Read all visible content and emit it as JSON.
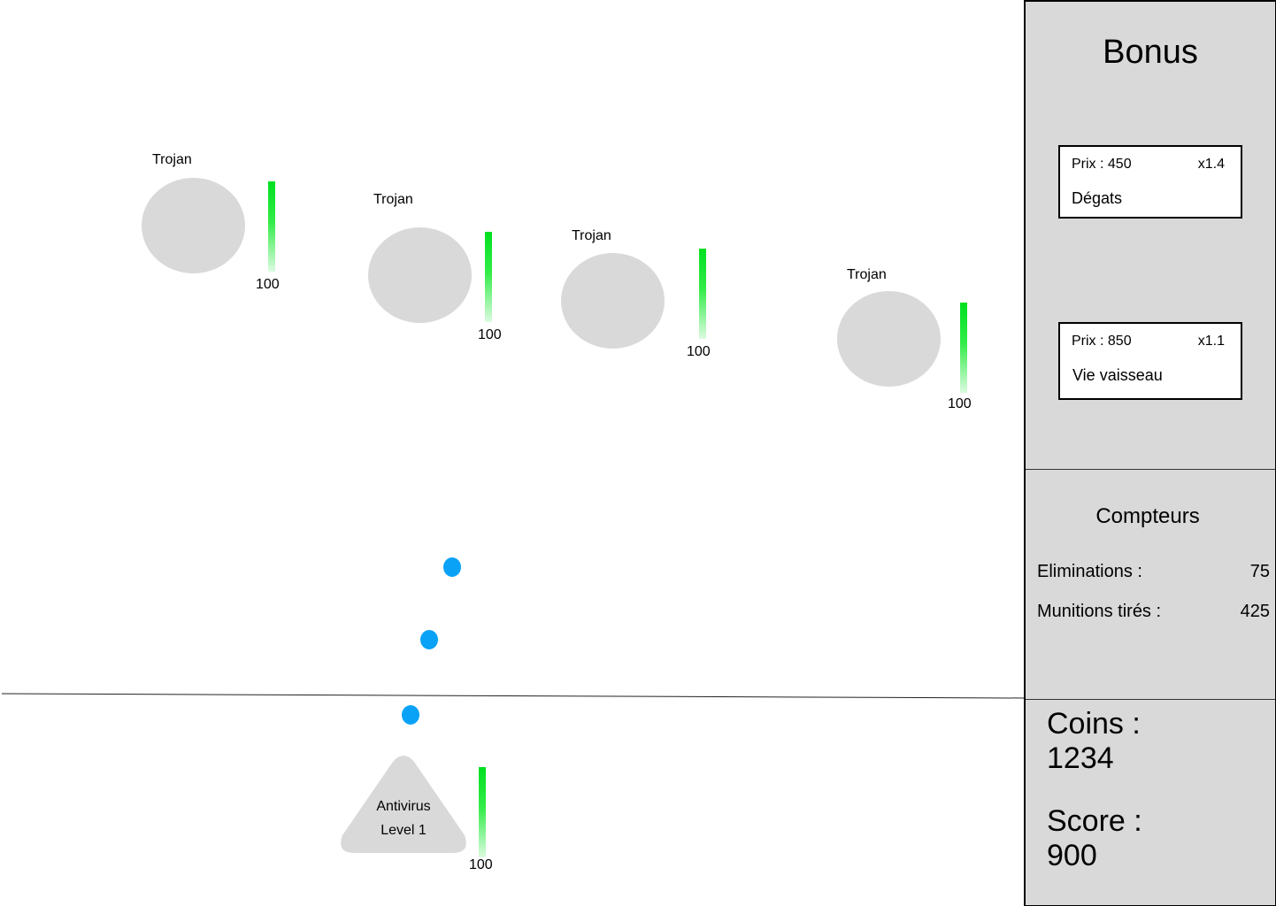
{
  "enemies": [
    {
      "name": "Trojan",
      "health": "100"
    },
    {
      "name": "Trojan",
      "health": "100"
    },
    {
      "name": "Trojan",
      "health": "100"
    },
    {
      "name": "Trojan",
      "health": "100"
    }
  ],
  "player": {
    "name": "Antivirus",
    "level": "Level 1",
    "health": "100"
  },
  "bonus": {
    "title": "Bonus",
    "items": [
      {
        "price": "Prix : 450",
        "multiplier": "x1.4",
        "name": "Dégats"
      },
      {
        "price": "Prix : 850",
        "multiplier": "x1.1",
        "name": "Vie vaisseau"
      }
    ]
  },
  "counters": {
    "title": "Compteurs",
    "eliminations_label": "Eliminations :",
    "eliminations_value": "75",
    "shots_label": "Munitions tirés :",
    "shots_value": "425"
  },
  "stats": {
    "coins_label": "Coins :",
    "coins_value": "1234",
    "score_label": "Score :",
    "score_value": "900"
  },
  "colors": {
    "enemy": "#d9d9d9",
    "bullet": "#0aa2f6",
    "health": "#00e01f",
    "panel": "#d9d9d9"
  }
}
